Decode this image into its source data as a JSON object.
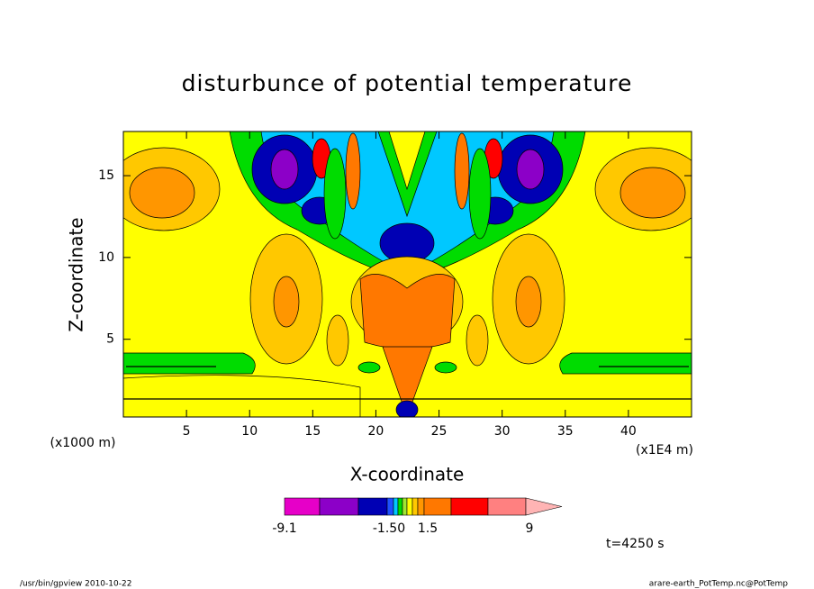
{
  "chart_data": {
    "type": "contour",
    "title": "disturbunce of potential temperature",
    "x_label": "X-coordinate",
    "y_label": "Z-coordinate",
    "x_unit_left": "(x1000 m)",
    "x_unit_right": "(x1E4 m)",
    "xlim": [
      0,
      45
    ],
    "xticks": [
      5,
      10,
      15,
      20,
      25,
      30,
      35,
      40
    ],
    "ylim": [
      0.25,
      17.7
    ],
    "yticks": [
      5,
      10,
      15
    ],
    "colorbar": {
      "colors": [
        "#e600c8",
        "#8c00c8",
        "#0000b4",
        "#1e50ff",
        "#00c8ff",
        "#00dc00",
        "#a0e632",
        "#ffff00",
        "#ffc800",
        "#ff9600",
        "#ff7800",
        "#ff0000",
        "#ff8080",
        "#ffb4b4"
      ],
      "ticks": [
        {
          "value": -9.1,
          "label": "-9.1"
        },
        {
          "value": -1.5,
          "label": "-1.50"
        },
        1.5,
        9
      ]
    },
    "annotation": "t=4250 s",
    "footer_left": "/usr/bin/gpview   2010-10-22",
    "footer_right": "arare-earth_PotTemp.nc@PotTemp"
  }
}
